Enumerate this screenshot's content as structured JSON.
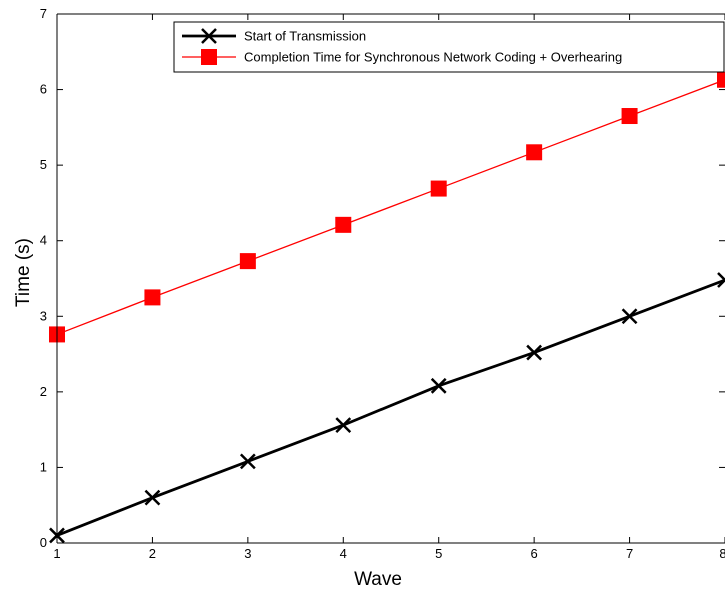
{
  "chart_data": {
    "type": "line",
    "xlabel": "Wave",
    "ylabel": "Time (s)",
    "xlim": [
      1,
      8
    ],
    "ylim": [
      0,
      7
    ],
    "x_ticks": [
      1,
      2,
      3,
      4,
      5,
      6,
      7,
      8
    ],
    "y_ticks": [
      0,
      1,
      2,
      3,
      4,
      5,
      6,
      7
    ],
    "grid": false,
    "legend_position": "top-right",
    "x": [
      1,
      2,
      3,
      4,
      5,
      6,
      7,
      8
    ],
    "series": [
      {
        "name": "Start of Transmission",
        "values": [
          0.1,
          0.6,
          1.08,
          1.56,
          2.08,
          2.52,
          3.0,
          3.48
        ],
        "color": "#000000",
        "marker": "x"
      },
      {
        "name": "Completion Time for Synchronous Network Coding + Overhearing",
        "values": [
          2.76,
          3.25,
          3.73,
          4.21,
          4.69,
          5.17,
          5.65,
          6.13
        ],
        "color": "#ff0000",
        "marker": "square"
      }
    ]
  }
}
